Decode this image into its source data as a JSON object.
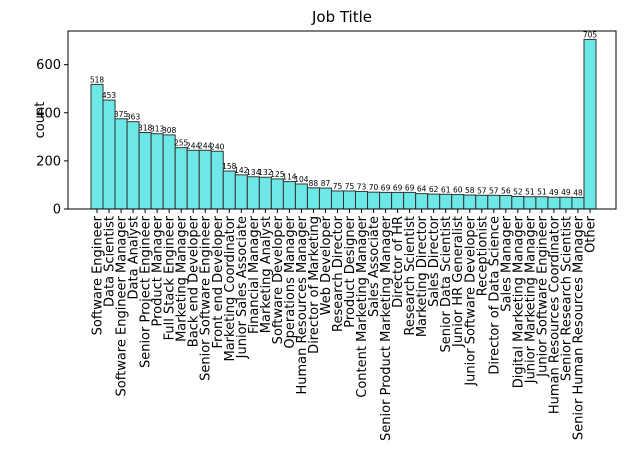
{
  "chart_data": {
    "type": "bar",
    "title": "Job Title",
    "xlabel": "",
    "ylabel": "count",
    "ylim": [
      0,
      740
    ],
    "yticks": [
      0,
      200,
      400,
      600
    ],
    "grid": false,
    "bar_color": "#6de8e6",
    "edge_color": "#333333",
    "categories": [
      "Software Engineer",
      "Data Scientist",
      "Software Engineer Manager",
      "Data Analyst",
      "Senior Project Engineer",
      "Product Manager",
      "Full Stack Engineer",
      "Marketing Manager",
      "Back end Developer",
      "Senior Software Engineer",
      "Front end Developer",
      "Marketing Coordinator",
      "Junior Sales Associate",
      "Financial Manager",
      "Marketing Analyst",
      "Software Developer",
      "Operations Manager",
      "Human Resources Manager",
      "Director of Marketing",
      "Web Developer",
      "Research Director",
      "Product Designer",
      "Content Marketing Manager",
      "Sales Associate",
      "Senior Product Marketing Manager",
      "Director of HR",
      "Research Scientist",
      "Marketing Director",
      "Sales Director",
      "Senior Data Scientist",
      "Junior HR Generalist",
      "Junior Software Developer",
      "Receptionist",
      "Director of Data Science",
      "Sales Manager",
      "Digital Marketing Manager",
      "Junior Marketing Manager",
      "Junior Software Engineer",
      "Human Resources Coordinator",
      "Senior Research Scientist",
      "Senior Human Resources Manager",
      "Other"
    ],
    "values": [
      518,
      453,
      375,
      363,
      318,
      313,
      308,
      255,
      244,
      244,
      240,
      158,
      142,
      134,
      132,
      125,
      114,
      104,
      88,
      87,
      75,
      75,
      73,
      70,
      69,
      69,
      69,
      64,
      62,
      61,
      60,
      58,
      57,
      57,
      56,
      52,
      51,
      51,
      49,
      49,
      48,
      705
    ]
  }
}
